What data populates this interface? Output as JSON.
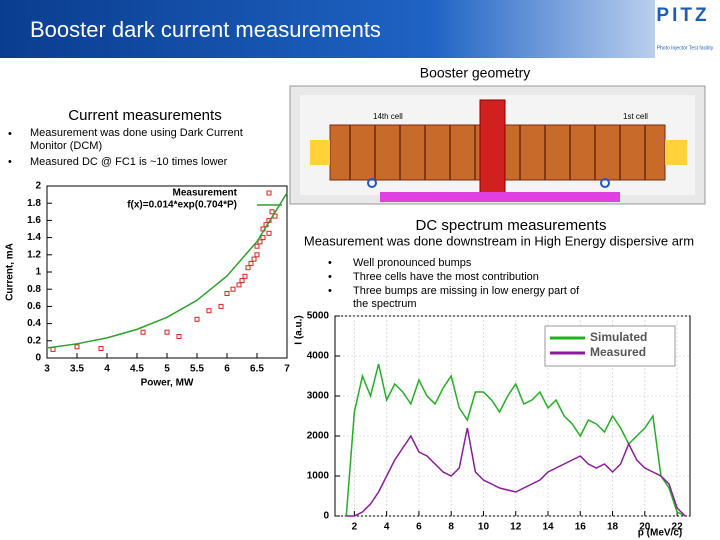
{
  "header": {
    "title": "Booster dark current measurements",
    "logo": "PITZ",
    "logo_caption": "Photo Injector Test facility"
  },
  "geometry": {
    "title": "Booster geometry",
    "labels": [
      "14th cell",
      "1st cell"
    ]
  },
  "current": {
    "title": "Current measurements",
    "bullets": [
      "Measurement was done using Dark Current Monitor (DCM)",
      "Measured DC @ FC1 is ~10 times lower"
    ]
  },
  "spectrum": {
    "title": "DC spectrum measurements",
    "subtitle": "Measurement was done downstream in High Energy dispersive arm",
    "bullets": [
      "Well pronounced bumps",
      "Three cells have the most contribution",
      "Three bumps are missing in low energy part of the spectrum"
    ]
  },
  "chart_data": [
    {
      "type": "scatter",
      "x_label": "Power, MW",
      "y_label": "Current, mA",
      "xlim": [
        3,
        7
      ],
      "xticks": [
        3,
        3.5,
        4,
        4.5,
        5,
        5.5,
        6,
        6.5,
        7
      ],
      "ylim": [
        0,
        2
      ],
      "yticks": [
        0,
        0.2,
        0.4,
        0.6,
        0.8,
        1,
        1.2,
        1.4,
        1.6,
        1.8,
        2
      ],
      "legend": "upper left",
      "series": [
        {
          "name": "Measurement",
          "color": "#e0201b",
          "mode": "markers",
          "x": [
            3.1,
            3.5,
            3.9,
            4.6,
            5.0,
            5.2,
            5.5,
            5.7,
            5.9,
            6.0,
            6.1,
            6.2,
            6.25,
            6.3,
            6.35,
            6.4,
            6.45,
            6.5,
            6.5,
            6.55,
            6.6,
            6.6,
            6.65,
            6.7,
            6.7,
            6.75,
            6.8
          ],
          "values": [
            0.1,
            0.13,
            0.11,
            0.3,
            0.3,
            0.25,
            0.45,
            0.55,
            0.6,
            0.75,
            0.8,
            0.85,
            0.9,
            0.95,
            1.05,
            1.1,
            1.15,
            1.2,
            1.3,
            1.35,
            1.4,
            1.5,
            1.55,
            1.6,
            1.45,
            1.7,
            1.65
          ]
        },
        {
          "name": "f(x)=0.014*exp(0.704*P)",
          "color": "#2ca02c",
          "mode": "line",
          "x": [
            3,
            3.5,
            4,
            4.5,
            5,
            5.5,
            6,
            6.5,
            7
          ],
          "values": [
            0.116,
            0.165,
            0.234,
            0.333,
            0.473,
            0.671,
            0.954,
            1.355,
            1.92
          ]
        }
      ]
    },
    {
      "type": "line",
      "x_label": "p (MeV/c)",
      "y_label": "I (a.u.)",
      "xlim": [
        0.8,
        22.8
      ],
      "xticks": [
        2,
        4,
        6,
        8,
        10,
        12,
        14,
        16,
        18,
        20,
        22
      ],
      "ylim": [
        0,
        5000
      ],
      "yticks": [
        0,
        1000,
        2000,
        3000,
        4000,
        5000
      ],
      "legend": "upper right",
      "grid": true,
      "x": [
        1.5,
        2,
        2.5,
        3,
        3.5,
        4,
        4.5,
        5,
        5.5,
        6,
        6.5,
        7,
        7.5,
        8,
        8.5,
        9,
        9.5,
        10,
        10.5,
        11,
        11.5,
        12,
        12.5,
        13,
        13.5,
        14,
        14.5,
        15,
        15.5,
        16,
        16.5,
        17,
        17.5,
        18,
        18.5,
        19,
        19.5,
        20,
        20.5,
        21,
        21.5,
        22,
        22.5
      ],
      "series": [
        {
          "name": "Simulated",
          "color": "#22b022",
          "values": [
            0,
            2600,
            3500,
            3000,
            3800,
            2900,
            3300,
            3100,
            2800,
            3400,
            3000,
            2800,
            3200,
            3500,
            2700,
            2400,
            3100,
            3100,
            2900,
            2600,
            3000,
            3300,
            2800,
            2900,
            3100,
            2700,
            2900,
            2500,
            2300,
            2000,
            2400,
            2300,
            2100,
            2500,
            2200,
            1800,
            2000,
            2200,
            2500,
            1000,
            700,
            100,
            0
          ]
        },
        {
          "name": "Measured",
          "color": "#8b1a9c",
          "values": [
            0,
            0,
            100,
            300,
            600,
            1000,
            1400,
            1700,
            2000,
            1600,
            1500,
            1300,
            1100,
            1000,
            1200,
            2200,
            1100,
            900,
            800,
            700,
            650,
            600,
            700,
            800,
            900,
            1100,
            1200,
            1300,
            1400,
            1500,
            1300,
            1200,
            1300,
            1100,
            1300,
            1800,
            1400,
            1200,
            1100,
            1000,
            800,
            200,
            0
          ]
        }
      ]
    }
  ]
}
